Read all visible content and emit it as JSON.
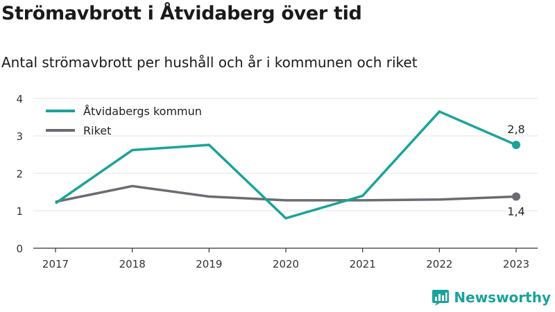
{
  "title": "Strömavbrott i Åtvidaberg över tid",
  "subtitle": "Antal strömavbrott per hushåll och år i kommunen och riket",
  "brand": {
    "name": "Newsworthy",
    "logo_icon": "bar-chart-logo-icon",
    "color": "#1aa39a"
  },
  "chart_data": {
    "type": "line",
    "x": [
      "2017",
      "2018",
      "2019",
      "2020",
      "2021",
      "2022",
      "2023"
    ],
    "ylim": [
      0,
      4
    ],
    "yticks": [
      "0",
      "1",
      "2",
      "3",
      "4"
    ],
    "grid": true,
    "legend_position": "top-left",
    "series": [
      {
        "name": "Åtvidabergs kommun",
        "color": "#1aa39a",
        "values": [
          1.2,
          2.62,
          2.76,
          0.8,
          1.4,
          3.65,
          2.76
        ],
        "end_label": "2,8"
      },
      {
        "name": "Riket",
        "color": "#6b6b72",
        "values": [
          1.24,
          1.66,
          1.38,
          1.28,
          1.28,
          1.3,
          1.38
        ],
        "end_label": "1,4"
      }
    ]
  }
}
